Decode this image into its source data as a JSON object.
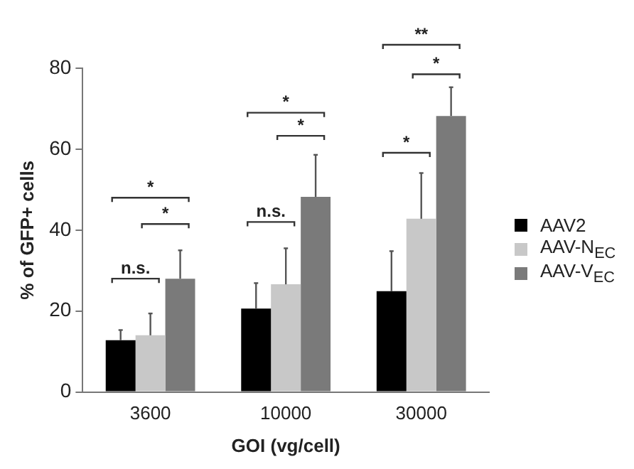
{
  "chart_data": {
    "type": "bar",
    "xlabel": "GOI (vg/cell)",
    "ylabel": "% of GFP+ cells",
    "categories": [
      "3600",
      "10000",
      "30000"
    ],
    "series": [
      {
        "name": "AAV2",
        "color": "#000000",
        "values": [
          12.8,
          20.6,
          24.9
        ],
        "errors": [
          [
            12.8,
            15.3
          ],
          [
            20.6,
            26.9
          ],
          [
            24.9,
            34.8
          ]
        ]
      },
      {
        "name": "AAV-N$_{EC}$",
        "color": "#c8c8c8",
        "values": [
          14.0,
          26.6,
          42.8
        ],
        "errors": [
          [
            14.0,
            19.4
          ],
          [
            26.6,
            35.5
          ],
          [
            42.8,
            54.1
          ]
        ]
      },
      {
        "name": "AAV-V$_{EC}$",
        "color": "#7a7a7a",
        "values": [
          28.0,
          48.2,
          68.2
        ],
        "errors": [
          [
            28.0,
            35.0
          ],
          [
            48.2,
            58.6
          ],
          [
            68.2,
            75.3
          ]
        ]
      }
    ],
    "ylim": [
      0,
      80
    ],
    "yticks": [
      0,
      20,
      40,
      60,
      80
    ],
    "grid": false,
    "legend": "right",
    "annotations": [
      "n.s.",
      "*",
      "*",
      "n.s.",
      "*",
      "*",
      "*",
      "*",
      "**"
    ]
  }
}
